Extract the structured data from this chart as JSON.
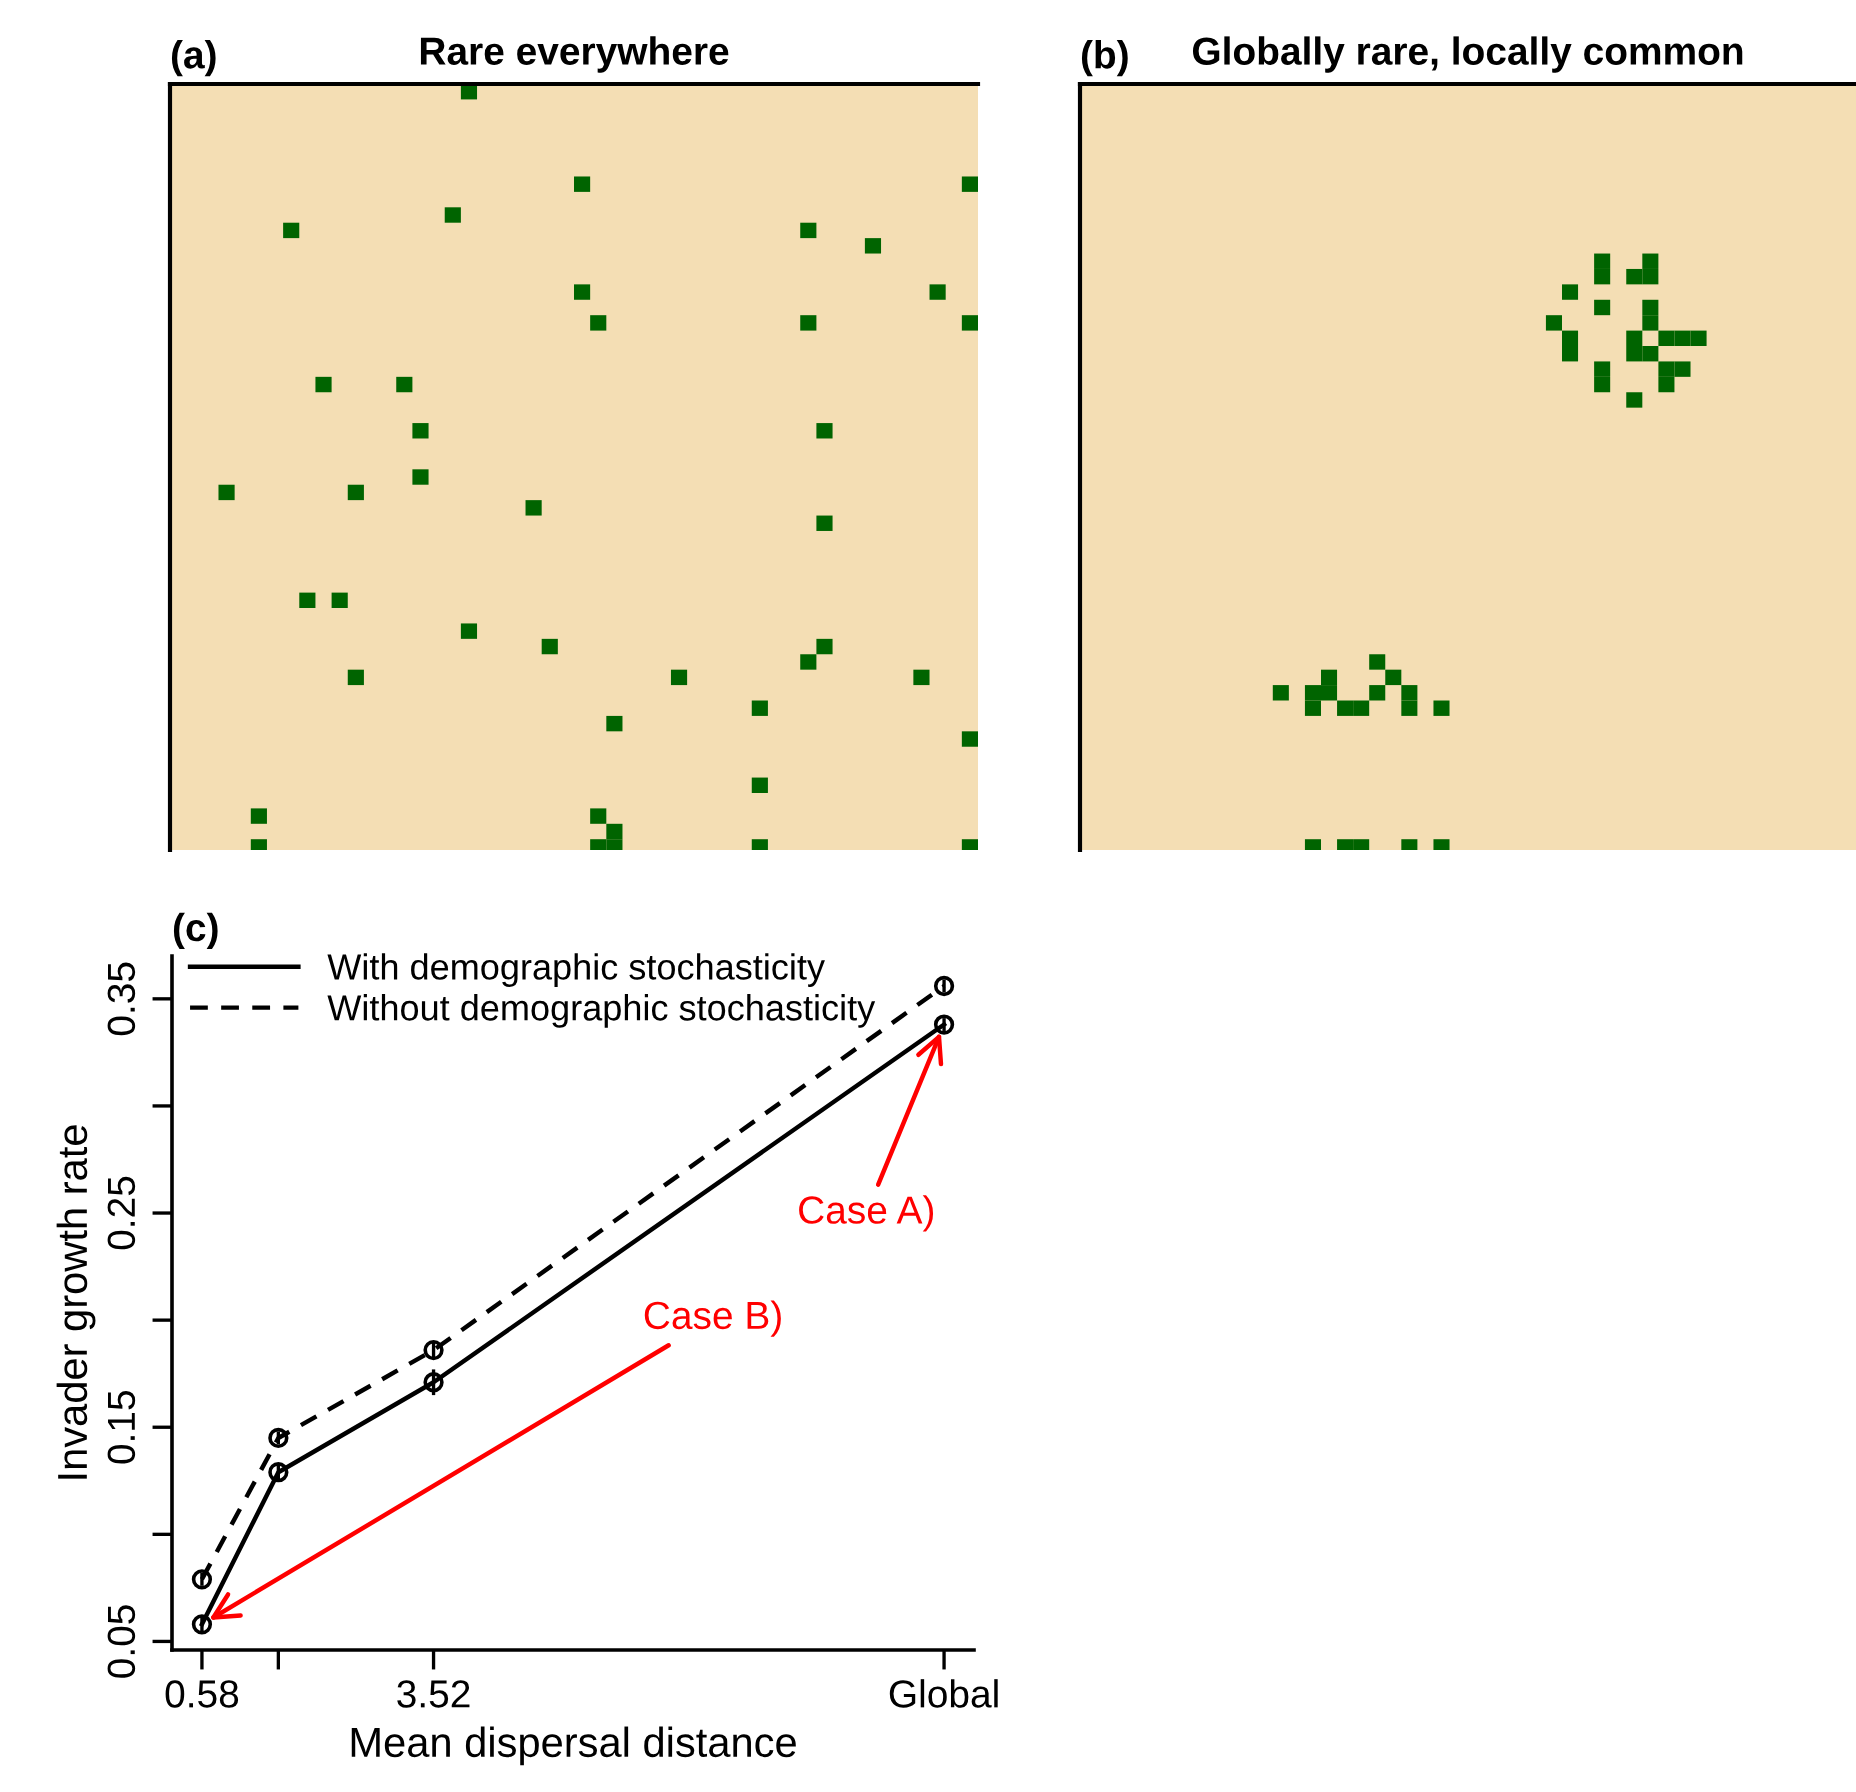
{
  "chart_data": [
    {
      "type": "other",
      "title": "Rare everywhere",
      "annotations": [
        "(a)"
      ]
    },
    {
      "type": "other",
      "title": "Globally rare, locally common",
      "annotations": [
        "(b)"
      ]
    },
    {
      "type": "line",
      "xlabel": "Mean dispersal distance",
      "ylabel": "Invader growth rate",
      "x": [
        0.58,
        1.55,
        3.52,
        10
      ],
      "xlim": [
        0.2,
        10.38
      ],
      "xticks": [
        0.58,
        {
          "value": 1.55,
          "label": null
        },
        3.52,
        {
          "value": 10,
          "label": "Global"
        }
      ],
      "ylim": [
        0.046,
        0.37
      ],
      "yticks": [
        0.05,
        {
          "value": 0.1,
          "label": null
        },
        0.15,
        {
          "value": 0.2,
          "label": null
        },
        0.25,
        {
          "value": 0.3,
          "label": null
        },
        0.35
      ],
      "marker": "circle",
      "legend": "top left",
      "series": [
        {
          "name": "With demographic stochasticity",
          "color": "#000000",
          "line_style": "solid",
          "values": [
            0.058,
            0.129,
            0.171,
            0.338
          ],
          "errors": [
            0.004,
            0.004,
            0.006,
            0.003
          ]
        },
        {
          "name": "Without demographic stochasticity",
          "color": "#000000",
          "line_style": "dashed",
          "values": [
            0.079,
            0.145,
            0.186,
            0.356
          ],
          "errors": [
            0.003,
            0.003,
            0.004,
            0.003
          ]
        }
      ],
      "annotations": [
        "(c)",
        {
          "text": "Case A)",
          "x": 10,
          "y": 0.338
        },
        {
          "text": "Case B)",
          "x": 0.58,
          "y": 0.058
        }
      ]
    }
  ]
}
